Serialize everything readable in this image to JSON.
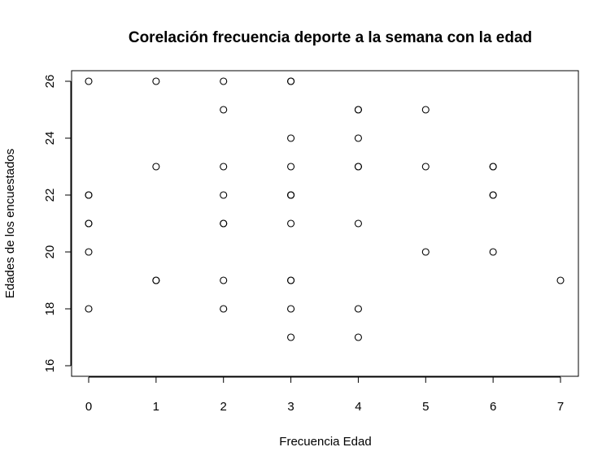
{
  "chart_data": {
    "type": "scatter",
    "title": "Corelación frecuencia deporte a la semana con la edad",
    "xlabel": "Frecuencia Edad",
    "ylabel": "Edades de los encuestados",
    "xlim": [
      0,
      7
    ],
    "ylim": [
      16,
      26
    ],
    "xticks": [
      0,
      1,
      2,
      3,
      4,
      5,
      6,
      7
    ],
    "yticks": [
      16,
      18,
      20,
      22,
      24,
      26
    ],
    "grid": false,
    "points": [
      {
        "x": 0,
        "y": 26
      },
      {
        "x": 0,
        "y": 22
      },
      {
        "x": 0,
        "y": 22
      },
      {
        "x": 0,
        "y": 21
      },
      {
        "x": 0,
        "y": 21
      },
      {
        "x": 0,
        "y": 20
      },
      {
        "x": 0,
        "y": 18
      },
      {
        "x": 1,
        "y": 26
      },
      {
        "x": 1,
        "y": 23
      },
      {
        "x": 1,
        "y": 19
      },
      {
        "x": 1,
        "y": 19
      },
      {
        "x": 2,
        "y": 26
      },
      {
        "x": 2,
        "y": 25
      },
      {
        "x": 2,
        "y": 23
      },
      {
        "x": 2,
        "y": 22
      },
      {
        "x": 2,
        "y": 21
      },
      {
        "x": 2,
        "y": 21
      },
      {
        "x": 2,
        "y": 19
      },
      {
        "x": 2,
        "y": 18
      },
      {
        "x": 3,
        "y": 26
      },
      {
        "x": 3,
        "y": 26
      },
      {
        "x": 3,
        "y": 24
      },
      {
        "x": 3,
        "y": 23
      },
      {
        "x": 3,
        "y": 22
      },
      {
        "x": 3,
        "y": 22
      },
      {
        "x": 3,
        "y": 22
      },
      {
        "x": 3,
        "y": 21
      },
      {
        "x": 3,
        "y": 19
      },
      {
        "x": 3,
        "y": 19
      },
      {
        "x": 3,
        "y": 18
      },
      {
        "x": 3,
        "y": 17
      },
      {
        "x": 4,
        "y": 25
      },
      {
        "x": 4,
        "y": 25
      },
      {
        "x": 4,
        "y": 24
      },
      {
        "x": 4,
        "y": 23
      },
      {
        "x": 4,
        "y": 23
      },
      {
        "x": 4,
        "y": 21
      },
      {
        "x": 4,
        "y": 18
      },
      {
        "x": 4,
        "y": 17
      },
      {
        "x": 5,
        "y": 25
      },
      {
        "x": 5,
        "y": 23
      },
      {
        "x": 5,
        "y": 20
      },
      {
        "x": 6,
        "y": 23
      },
      {
        "x": 6,
        "y": 23
      },
      {
        "x": 6,
        "y": 22
      },
      {
        "x": 6,
        "y": 22
      },
      {
        "x": 6,
        "y": 20
      },
      {
        "x": 7,
        "y": 19
      }
    ]
  }
}
